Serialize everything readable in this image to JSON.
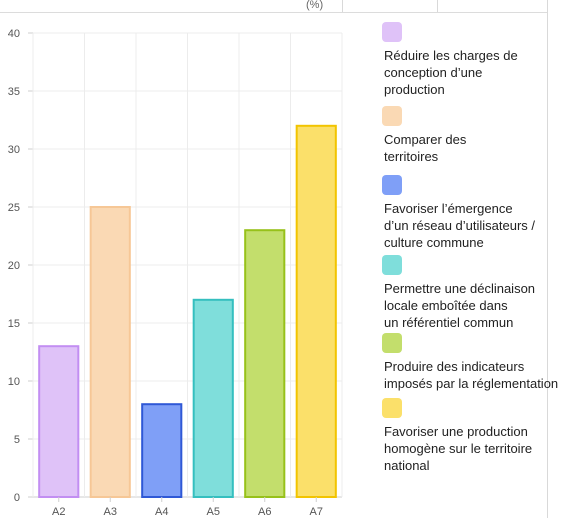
{
  "chart_data": {
    "type": "bar",
    "categories": [
      "A2",
      "A3",
      "A4",
      "A5",
      "A6",
      "A7"
    ],
    "values": [
      13,
      25,
      8,
      17,
      23,
      32
    ],
    "yticks": [
      "0",
      "5",
      "10",
      "15",
      "20",
      "25",
      "30",
      "35",
      "40"
    ],
    "ylim": [
      0,
      40
    ],
    "grid": true,
    "legend_position": "right",
    "colors": [
      {
        "fill": "#dfc2f8",
        "stroke": "#c28ef2"
      },
      {
        "fill": "#fad9b4",
        "stroke": "#f6c796"
      },
      {
        "fill": "#7f9ff7",
        "stroke": "#2f58d6"
      },
      {
        "fill": "#7fdedb",
        "stroke": "#35bfbf"
      },
      {
        "fill": "#c3de6c",
        "stroke": "#97c11a"
      },
      {
        "fill": "#fbe06a",
        "stroke": "#f2c400"
      }
    ],
    "legend": [
      "Réduire les  charges de\n conception  d’une\n production",
      "Comparer des\n territoires",
      "Favoriser  l’émergence\n d’un réseau  d’utilisateurs /\n culture   commune",
      "Permettre une  déclinaison\nlocale  emboîtée dans\n un référentiel  commun",
      "Produire des  indicateurs\nimposés par la réglementation",
      "Favoriser une  production\n homogène sur  le territoire\n national"
    ]
  },
  "header": {
    "paren": "(%)"
  }
}
